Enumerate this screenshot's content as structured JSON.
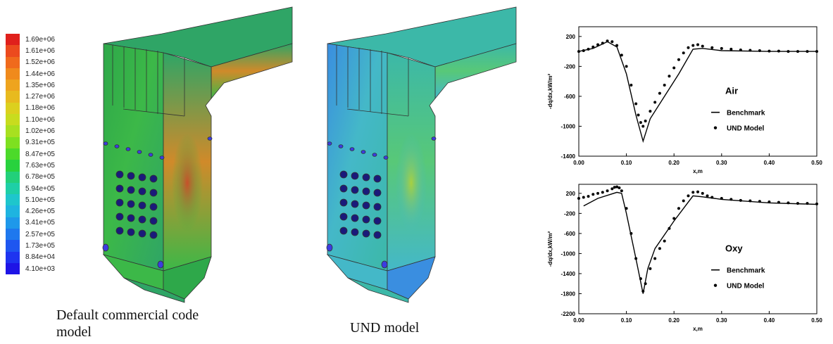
{
  "colorbar": {
    "labels": [
      "1.69e+06",
      "1.61e+06",
      "1.52e+06",
      "1.44e+06",
      "1.35e+06",
      "1.27e+06",
      "1.18e+06",
      "1.10e+06",
      "1.02e+06",
      "9.31e+05",
      "8.47e+05",
      "7.63e+05",
      "6.78e+05",
      "5.94e+05",
      "5.10e+05",
      "4.26e+05",
      "3.41e+05",
      "2.57e+05",
      "1.73e+05",
      "8.84e+04",
      "4.10e+03"
    ]
  },
  "captions": [
    "Default commercial code model",
    "UND model"
  ],
  "chart_data": [
    {
      "type": "line",
      "annotation": "Air",
      "x_label": "x,m",
      "y_label": "-dq/dx,kW/m²",
      "xlim": [
        0,
        0.5
      ],
      "xticks": [
        {
          "value": 0,
          "label": "0.00"
        },
        {
          "value": 0.1,
          "label": "0.10"
        },
        {
          "value": 0.2,
          "label": "0.20"
        },
        {
          "value": 0.3,
          "label": "0.30"
        },
        {
          "value": 0.4,
          "label": "0.40"
        },
        {
          "value": 0.5,
          "label": "0.50"
        }
      ],
      "ylim": [
        -1400,
        330
      ],
      "yticks": [
        200,
        -200,
        -600,
        -1000,
        -1400
      ],
      "series": [
        {
          "name": "Benchmark",
          "mode": "lines",
          "color": "#000000",
          "x": [
            0,
            0.03,
            0.06,
            0.08,
            0.1,
            0.12,
            0.135,
            0.15,
            0.18,
            0.21,
            0.24,
            0.26,
            0.3,
            0.4,
            0.5
          ],
          "values": [
            0,
            40,
            130,
            60,
            -300,
            -850,
            -1200,
            -900,
            -600,
            -300,
            30,
            40,
            10,
            0,
            0
          ]
        },
        {
          "name": "UND Model",
          "mode": "markers",
          "color": "#000000",
          "x": [
            0,
            0.01,
            0.02,
            0.03,
            0.04,
            0.05,
            0.06,
            0.07,
            0.08,
            0.09,
            0.1,
            0.11,
            0.12,
            0.125,
            0.13,
            0.135,
            0.14,
            0.15,
            0.16,
            0.17,
            0.18,
            0.19,
            0.2,
            0.21,
            0.22,
            0.23,
            0.24,
            0.25,
            0.26,
            0.28,
            0.3,
            0.32,
            0.34,
            0.36,
            0.38,
            0.4,
            0.42,
            0.44,
            0.46,
            0.48,
            0.5
          ],
          "values": [
            0,
            10,
            30,
            60,
            90,
            110,
            140,
            130,
            80,
            -50,
            -200,
            -450,
            -700,
            -850,
            -950,
            -1000,
            -930,
            -800,
            -680,
            -560,
            -450,
            -330,
            -220,
            -110,
            -20,
            50,
            80,
            90,
            70,
            50,
            40,
            30,
            20,
            15,
            10,
            5,
            5,
            0,
            0,
            0,
            0
          ]
        }
      ]
    },
    {
      "type": "line",
      "annotation": "Oxy",
      "x_label": "x,m",
      "y_label": "-dq/dx,kW/m²",
      "xlim": [
        0,
        0.5
      ],
      "xticks": [
        {
          "value": 0,
          "label": "0.00"
        },
        {
          "value": 0.1,
          "label": "0.10"
        },
        {
          "value": 0.2,
          "label": "0.20"
        },
        {
          "value": 0.3,
          "label": "0.30"
        },
        {
          "value": 0.4,
          "label": "0.40"
        },
        {
          "value": 0.5,
          "label": "0.50"
        }
      ],
      "ylim": [
        -2200,
        380
      ],
      "yticks": [
        200,
        -200,
        -600,
        -1000,
        -1400,
        -1800,
        -2200
      ],
      "series": [
        {
          "name": "Benchmark",
          "mode": "lines",
          "color": "#000000",
          "x": [
            0.01,
            0.04,
            0.08,
            0.09,
            0.1,
            0.12,
            0.135,
            0.145,
            0.16,
            0.2,
            0.24,
            0.26,
            0.3,
            0.4,
            0.5
          ],
          "values": [
            -50,
            100,
            220,
            200,
            -200,
            -1100,
            -1800,
            -1300,
            -900,
            -350,
            150,
            130,
            80,
            10,
            -20
          ]
        },
        {
          "name": "UND Model",
          "mode": "markers",
          "color": "#000000",
          "x": [
            0,
            0.01,
            0.02,
            0.03,
            0.04,
            0.05,
            0.06,
            0.07,
            0.075,
            0.08,
            0.085,
            0.09,
            0.1,
            0.11,
            0.12,
            0.13,
            0.135,
            0.14,
            0.15,
            0.16,
            0.17,
            0.18,
            0.19,
            0.2,
            0.21,
            0.22,
            0.23,
            0.24,
            0.25,
            0.26,
            0.27,
            0.28,
            0.3,
            0.32,
            0.34,
            0.36,
            0.38,
            0.4,
            0.42,
            0.44,
            0.46,
            0.48,
            0.5
          ],
          "values": [
            100,
            120,
            140,
            180,
            200,
            220,
            250,
            290,
            320,
            330,
            310,
            250,
            -100,
            -600,
            -1100,
            -1500,
            -1750,
            -1600,
            -1300,
            -1100,
            -900,
            -750,
            -500,
            -300,
            -100,
            50,
            150,
            220,
            230,
            200,
            150,
            120,
            100,
            80,
            60,
            50,
            40,
            30,
            20,
            10,
            0,
            0,
            -10
          ]
        }
      ]
    }
  ]
}
